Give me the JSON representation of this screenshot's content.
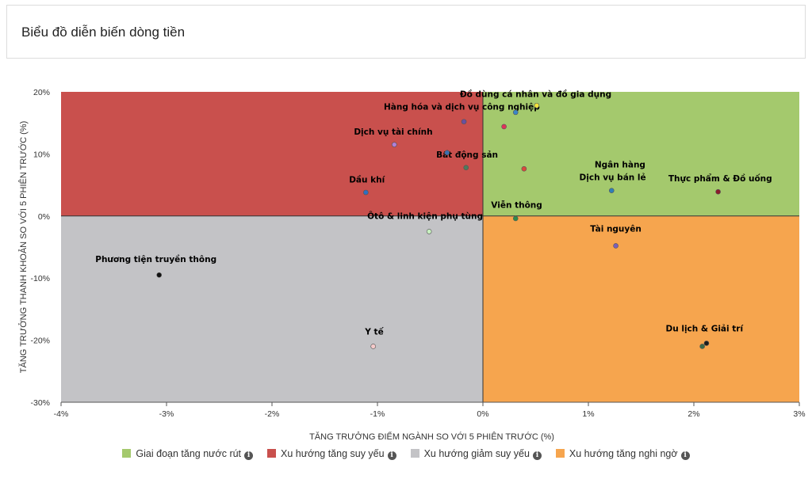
{
  "header": {
    "title": "Biểu đồ diễn biến dòng tiền"
  },
  "colors": {
    "green_quadrant": "#a4c96d",
    "red_quadrant": "#c9504d",
    "gray_quadrant": "#c3c3c6",
    "orange_quadrant": "#f6a54e"
  },
  "legend": [
    {
      "label": "Giai đoạn tăng nước rút",
      "color": "#a4c96d",
      "icon": "info-icon"
    },
    {
      "label": "Xu hướng tăng suy yếu",
      "color": "#c9504d",
      "icon": "info-icon"
    },
    {
      "label": "Xu hướng giảm suy yếu",
      "color": "#c3c3c6",
      "icon": "info-icon"
    },
    {
      "label": "Xu hướng tăng nghi ngờ",
      "color": "#f6a54e",
      "icon": "info-icon"
    }
  ],
  "chart_data": {
    "type": "scatter",
    "xlabel": "TĂNG TRƯỞNG ĐIỂM NGÀNH SO VỚI 5 PHIÊN TRƯỚC (%)",
    "ylabel": "TĂNG TRƯỞNG THANH KHOẢN SO VỚI 5 PHIÊN TRƯỚC (%)",
    "xlim": [
      -4,
      3
    ],
    "ylim": [
      -30,
      20
    ],
    "x_ticks": [
      -4,
      -3,
      -2,
      -1,
      0,
      1,
      2,
      3
    ],
    "x_tick_labels": [
      "-4%",
      "-3%",
      "-2%",
      "-1%",
      "0%",
      "1%",
      "2%",
      "3%"
    ],
    "y_ticks": [
      20,
      10,
      0,
      -10,
      -20,
      -30
    ],
    "y_tick_labels": [
      "20%",
      "10%",
      "0%",
      "-10%",
      "-20%",
      "-30%"
    ],
    "quadrants": [
      {
        "name": "Giai đoạn tăng nước rút",
        "x_range": [
          0,
          3
        ],
        "y_range": [
          0,
          20
        ]
      },
      {
        "name": "Xu hướng tăng suy yếu",
        "x_range": [
          -4,
          0
        ],
        "y_range": [
          0,
          20
        ]
      },
      {
        "name": "Xu hướng giảm suy yếu",
        "x_range": [
          -4,
          0
        ],
        "y_range": [
          -30,
          0
        ]
      },
      {
        "name": "Xu hướng tăng nghi ngờ",
        "x_range": [
          0,
          3
        ],
        "y_range": [
          -30,
          0
        ]
      }
    ],
    "labels": [
      {
        "text": "Đồ dùng cá nhân và đồ gia dụng",
        "x": 0.5,
        "y": 19.2,
        "anchor": "middle"
      },
      {
        "text": "Hàng hóa và dịch vụ công nghiệp",
        "x": -0.2,
        "y": 17.1,
        "anchor": "middle"
      },
      {
        "text": "Dịch vụ tài chính",
        "x": -0.85,
        "y": 13.1,
        "anchor": "middle"
      },
      {
        "text": "Bất động sản",
        "x": -0.15,
        "y": 9.4,
        "anchor": "middle"
      },
      {
        "text": "Dầu khí",
        "x": -1.1,
        "y": 5.4,
        "anchor": "middle"
      },
      {
        "text": "Ngân hàng",
        "x": 1.3,
        "y": 7.8,
        "anchor": "middle"
      },
      {
        "text": "Dịch vụ bán lẻ",
        "x": 1.23,
        "y": 5.8,
        "anchor": "middle"
      },
      {
        "text": "Thực phẩm & Đồ uống",
        "x": 2.25,
        "y": 5.6,
        "anchor": "middle"
      },
      {
        "text": "Viễn thông",
        "x": 0.32,
        "y": 1.3,
        "anchor": "middle"
      },
      {
        "text": "Ôtô & linh kiện phụ tùng",
        "x": 0.0,
        "y": -0.5,
        "anchor": "end"
      },
      {
        "text": "Tài nguyên",
        "x": 1.26,
        "y": -2.5,
        "anchor": "middle"
      },
      {
        "text": "Phương tiện truyền thông",
        "x": -3.1,
        "y": -7.4,
        "anchor": "middle"
      },
      {
        "text": "Y tế",
        "x": -1.03,
        "y": -19.1,
        "anchor": "middle"
      },
      {
        "text": "Du lịch & Giải trí",
        "x": 2.1,
        "y": -18.6,
        "anchor": "middle"
      }
    ],
    "points": [
      {
        "x": 0.51,
        "y": 17.8,
        "color": "#f4e43a"
      },
      {
        "x": 0.31,
        "y": 16.7,
        "color": "#3a86c8"
      },
      {
        "x": -0.18,
        "y": 15.2,
        "color": "#6a4fa0"
      },
      {
        "x": 0.2,
        "y": 14.4,
        "color": "#e0325a"
      },
      {
        "x": -0.84,
        "y": 11.5,
        "color": "#b07fd8"
      },
      {
        "x": -0.34,
        "y": 10.2,
        "color": "#3a6fb0"
      },
      {
        "x": -0.16,
        "y": 7.8,
        "color": "#4f7a5c"
      },
      {
        "x": 0.39,
        "y": 7.6,
        "color": "#d94a3c"
      },
      {
        "x": -1.11,
        "y": 3.8,
        "color": "#2f6fc1"
      },
      {
        "x": 1.22,
        "y": 4.1,
        "color": "#2f7fb8"
      },
      {
        "x": 2.23,
        "y": 3.9,
        "color": "#8a1b2a"
      },
      {
        "x": 0.31,
        "y": -0.4,
        "color": "#2e8b4a"
      },
      {
        "x": -0.51,
        "y": -2.5,
        "color": "#c8f0c0"
      },
      {
        "x": 1.26,
        "y": -4.8,
        "color": "#7a5fb8"
      },
      {
        "x": -3.07,
        "y": -9.5,
        "color": "#111111"
      },
      {
        "x": -1.04,
        "y": -21.0,
        "color": "#f4c9c9"
      },
      {
        "x": 2.12,
        "y": -20.5,
        "color": "#1c1c1c"
      },
      {
        "x": 2.08,
        "y": -21.0,
        "color": "#3a6a48"
      }
    ]
  }
}
